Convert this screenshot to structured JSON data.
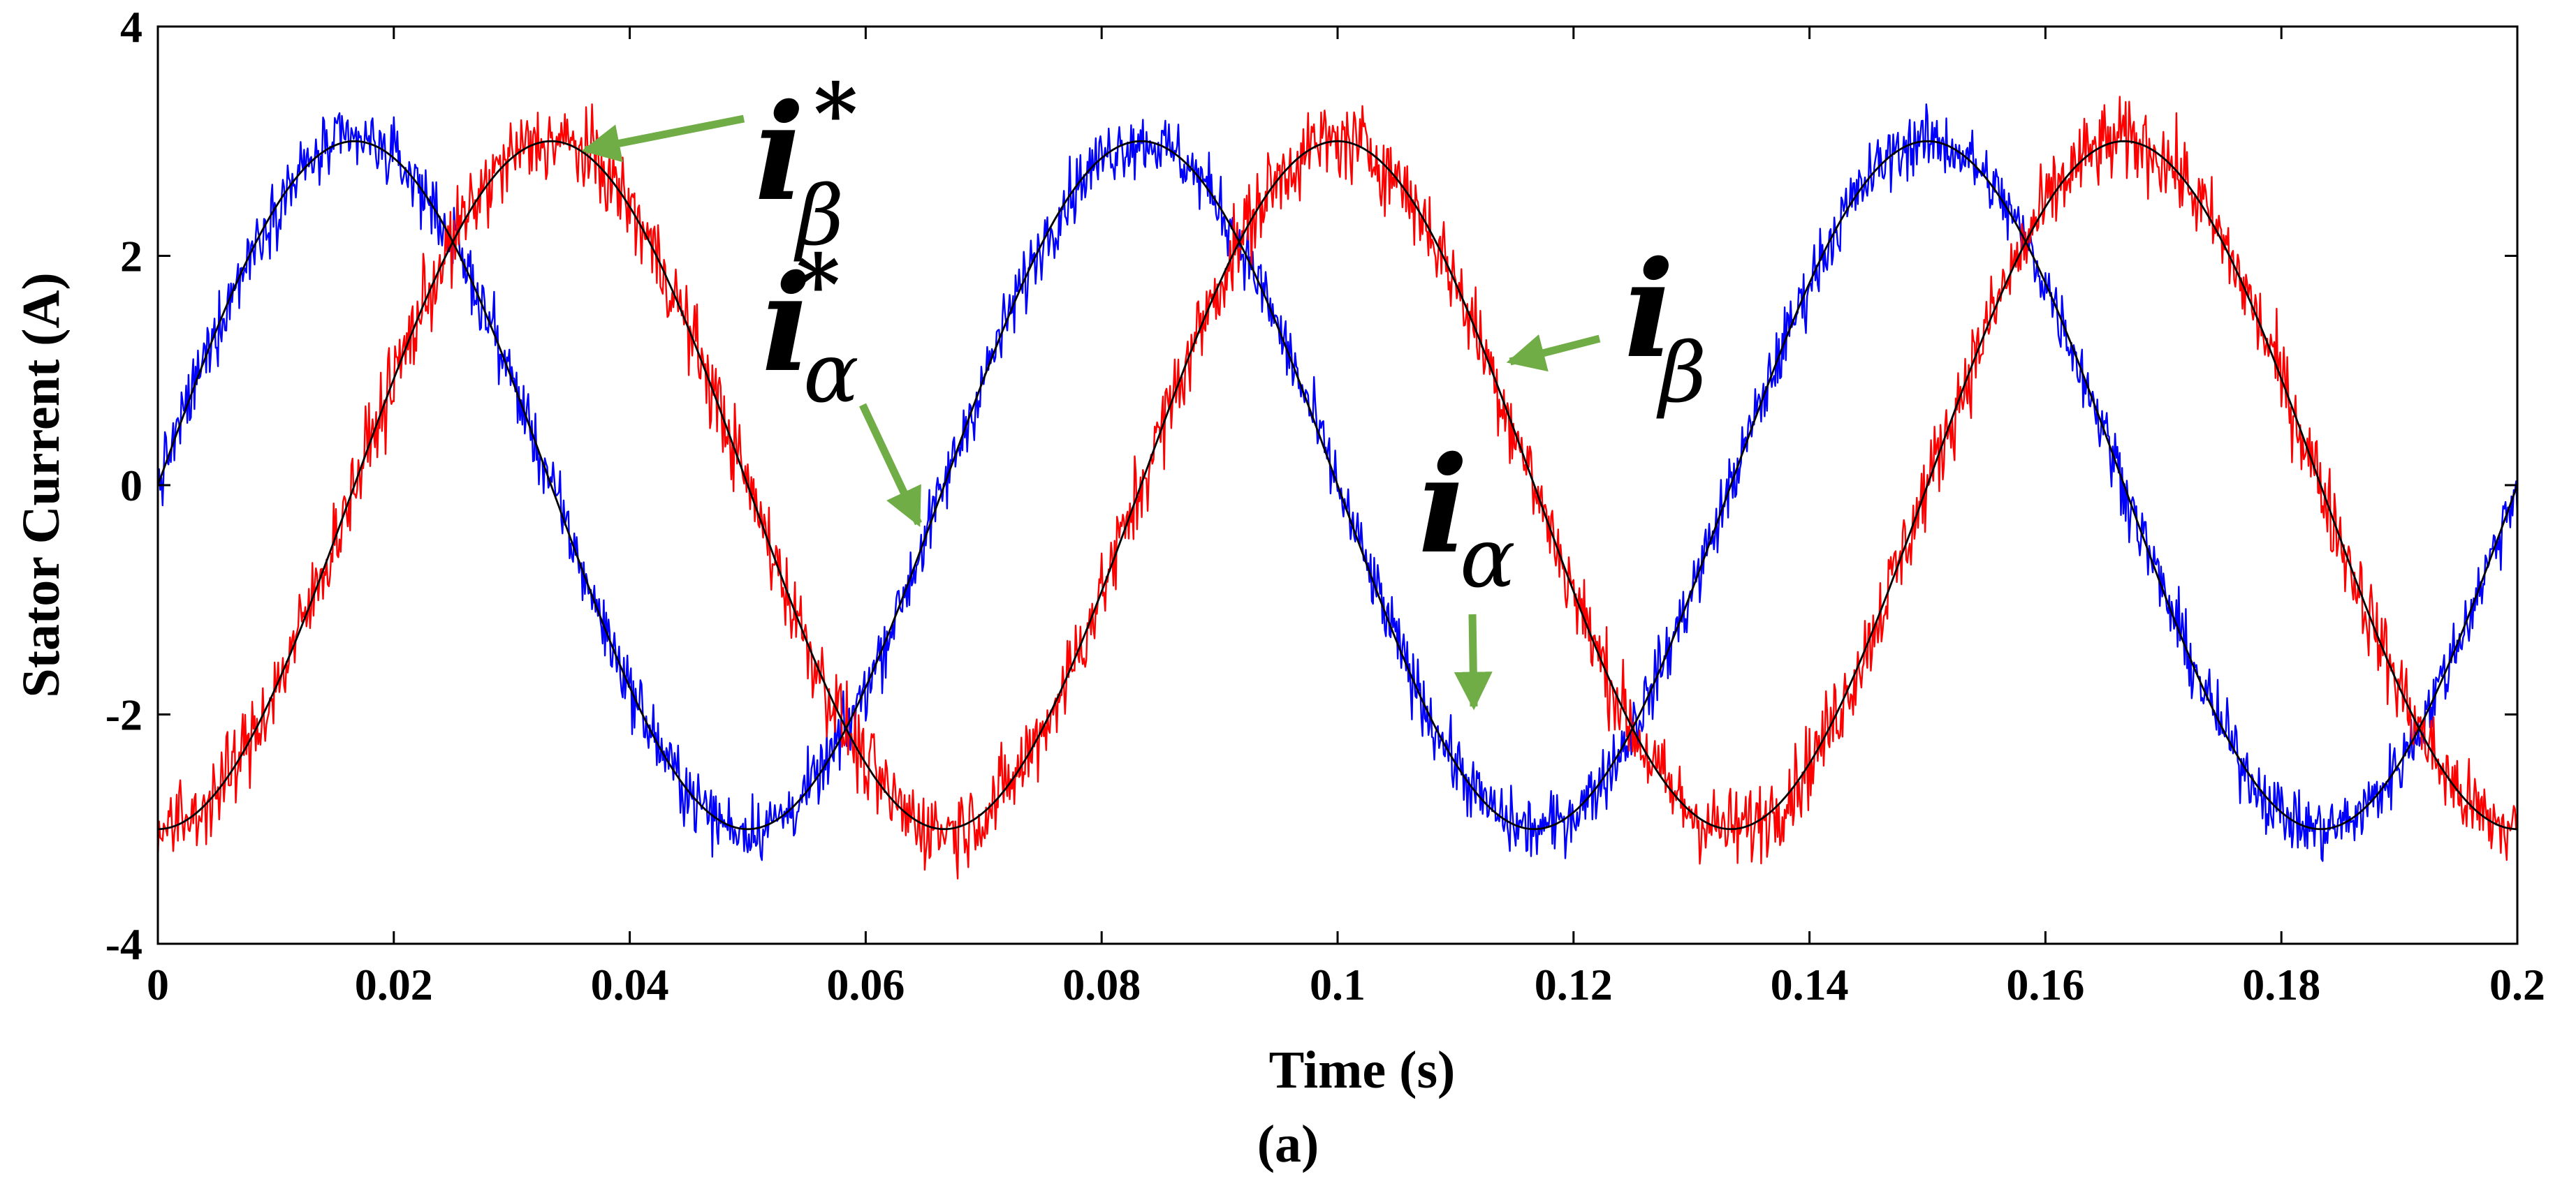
{
  "chart_data": {
    "type": "line",
    "title": "",
    "xlabel": "Time (s)",
    "ylabel": "Stator Current (A)",
    "caption": "(a)",
    "xlim": [
      0,
      0.2
    ],
    "ylim": [
      -4,
      4
    ],
    "x_ticks": [
      0,
      0.02,
      0.04,
      0.06,
      0.08,
      0.1,
      0.12,
      0.14,
      0.16,
      0.18,
      0.2
    ],
    "x_tick_labels": [
      "0",
      "0.02",
      "0.04",
      "0.06",
      "0.08",
      "0.1",
      "0.12",
      "0.14",
      "0.16",
      "0.18",
      "0.2"
    ],
    "y_ticks": [
      -4,
      -2,
      0,
      2,
      4
    ],
    "y_tick_labels": [
      "-4",
      "-2",
      "0",
      "2",
      "4"
    ],
    "series": [
      {
        "name": "i_alpha_ref",
        "color": "#000000",
        "amplitude": 3,
        "frequency_hz": 15,
        "phase": "sin",
        "noise": 0,
        "sample_step": 0.0002
      },
      {
        "name": "i_beta_ref",
        "color": "#000000",
        "amplitude": 3,
        "frequency_hz": 15,
        "phase": "-cos",
        "noise": 0,
        "sample_step": 0.0002
      },
      {
        "name": "i_alpha",
        "color": "#0000ff",
        "amplitude": 3,
        "frequency_hz": 15,
        "phase": "sin",
        "noise": 0.22,
        "sample_step": 0.0001
      },
      {
        "name": "i_beta",
        "color": "#ff0000",
        "amplitude": 3,
        "frequency_hz": 15,
        "phase": "-cos",
        "noise": 0.28,
        "sample_step": 0.0001
      }
    ],
    "annotations": [
      {
        "id": "ibeta-ref",
        "main": "i",
        "sub": "β",
        "sup": "*",
        "color": "#70ad47",
        "points_to": {
          "x": 0.0365,
          "y": 2.95
        }
      },
      {
        "id": "ialpha-ref",
        "main": "i",
        "sub": "α",
        "sup": "*",
        "color": "#70ad47",
        "points_to": {
          "x": 0.0645,
          "y": -0.2
        }
      },
      {
        "id": "ibeta",
        "main": "i",
        "sub": "β",
        "sup": "",
        "color": "#70ad47",
        "points_to": {
          "x": 0.1145,
          "y": 1.1
        }
      },
      {
        "id": "ialpha",
        "main": "i",
        "sub": "α",
        "sup": "",
        "color": "#70ad47",
        "points_to": {
          "x": 0.111,
          "y": -2.0
        }
      }
    ]
  }
}
